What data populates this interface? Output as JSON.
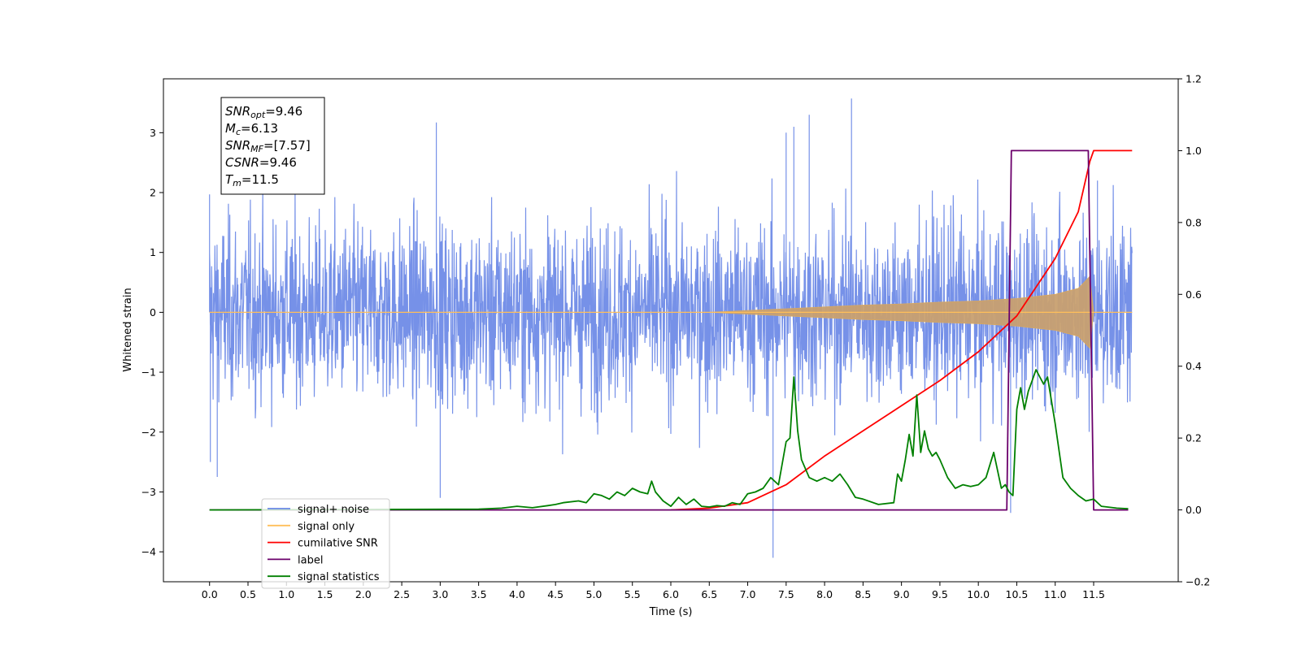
{
  "chart_data": {
    "type": "line",
    "title": "",
    "xlabel": "Time (s)",
    "ylabel": "Whitened strain",
    "xlim": [
      -0.6,
      12.6
    ],
    "ylim": [
      -4.5,
      3.9
    ],
    "y2lim": [
      -0.2,
      1.2
    ],
    "x_ticks": [
      0.0,
      0.5,
      1.0,
      1.5,
      2.0,
      2.5,
      3.0,
      3.5,
      4.0,
      4.5,
      5.0,
      5.5,
      6.0,
      6.5,
      7.0,
      7.5,
      8.0,
      8.5,
      9.0,
      9.5,
      10.0,
      10.5,
      11.0,
      11.5
    ],
    "x_tick_labels": [
      "0.0",
      "0.5",
      "1.0",
      "1.5",
      "2.0",
      "2.5",
      "3.0",
      "3.5",
      "4.0",
      "4.5",
      "5.0",
      "5.5",
      "6.0",
      "6.5",
      "7.0",
      "7.5",
      "8.0",
      "8.5",
      "9.0",
      "9.5",
      "10.0",
      "10.5",
      "11.0",
      "11.5"
    ],
    "y_ticks": [
      3,
      2,
      1,
      0,
      -1,
      -2,
      -3,
      -4
    ],
    "y_tick_labels": [
      "3",
      "2",
      "1",
      "0",
      "−1",
      "−2",
      "−3",
      "−4"
    ],
    "y2_ticks": [
      1.2,
      1.0,
      0.8,
      0.6,
      0.4,
      0.2,
      0.0,
      -0.2
    ],
    "y2_tick_labels": [
      "1.2",
      "1.0",
      "0.8",
      "0.6",
      "0.4",
      "0.2",
      "0.0",
      "−0.2"
    ],
    "grid": false,
    "legend_position": "lower-left",
    "legend": [
      {
        "name": "signal+ noise",
        "color": "#6a88e6"
      },
      {
        "name": "signal only",
        "color": "#ffbf5a"
      },
      {
        "name": "cumilative SNR",
        "color": "#ff0000"
      },
      {
        "name": "label",
        "color": "#6b006b"
      },
      {
        "name": "signal statistics",
        "color": "#008000"
      }
    ],
    "annotation": {
      "lines": [
        {
          "sym": "SNR",
          "sub": "opt",
          "value": "=9.46"
        },
        {
          "sym": "M",
          "sub": "c",
          "value": "=6.13"
        },
        {
          "sym": "SNR",
          "sub": "MF",
          "value": "=[7.57]"
        },
        {
          "sym": "CSNR",
          "sub": "",
          "value": "=9.46"
        },
        {
          "sym": "T",
          "sub": "m",
          "value": "=11.5"
        }
      ]
    },
    "noise_series": {
      "name": "signal+ noise",
      "axis": "left",
      "x_range": [
        0.0,
        12.0
      ],
      "typical_band": [
        -1.1,
        1.1
      ],
      "spike_points": [
        {
          "x": 0.0,
          "y": 1.97
        },
        {
          "x": 0.01,
          "y": -2.5
        },
        {
          "x": 0.1,
          "y": -2.75
        },
        {
          "x": 2.95,
          "y": 3.17
        },
        {
          "x": 3.0,
          "y": -3.1
        },
        {
          "x": 7.33,
          "y": -4.1
        },
        {
          "x": 7.5,
          "y": 3.0
        },
        {
          "x": 7.6,
          "y": 3.1
        },
        {
          "x": 7.8,
          "y": 3.3
        },
        {
          "x": 8.35,
          "y": 3.57
        },
        {
          "x": 10.42,
          "y": -3.35
        },
        {
          "x": 11.55,
          "y": 2.2
        }
      ]
    },
    "series": [
      {
        "name": "signal only",
        "axis": "left",
        "x": [
          0.0,
          6.5,
          7.0,
          7.5,
          8.0,
          8.5,
          9.0,
          9.5,
          10.0,
          10.5,
          11.0,
          11.3,
          11.45,
          11.5,
          12.0
        ],
        "amplitude": [
          0.0,
          0.0,
          0.03,
          0.06,
          0.09,
          0.12,
          0.14,
          0.17,
          0.19,
          0.23,
          0.3,
          0.4,
          0.6,
          0.0,
          0.0
        ]
      },
      {
        "name": "cumilative SNR",
        "axis": "right",
        "x": [
          6.0,
          6.5,
          7.0,
          7.5,
          8.0,
          8.5,
          9.0,
          9.5,
          10.0,
          10.5,
          11.0,
          11.3,
          11.45,
          11.5,
          12.0
        ],
        "y": [
          0.0,
          0.005,
          0.02,
          0.07,
          0.15,
          0.22,
          0.29,
          0.36,
          0.44,
          0.54,
          0.7,
          0.83,
          0.97,
          1.0,
          1.0
        ]
      },
      {
        "name": "label",
        "axis": "right",
        "x": [
          0.0,
          10.37,
          10.43,
          11.43,
          11.5,
          11.95
        ],
        "y": [
          0.0,
          0.0,
          1.0,
          1.0,
          0.0,
          0.0
        ]
      },
      {
        "name": "signal statistics",
        "axis": "right",
        "x": [
          0.0,
          3.5,
          3.8,
          4.0,
          4.2,
          4.4,
          4.5,
          4.6,
          4.8,
          4.9,
          5.0,
          5.1,
          5.2,
          5.3,
          5.4,
          5.5,
          5.6,
          5.7,
          5.75,
          5.8,
          5.9,
          6.0,
          6.1,
          6.2,
          6.3,
          6.4,
          6.5,
          6.6,
          6.7,
          6.8,
          6.9,
          7.0,
          7.1,
          7.2,
          7.3,
          7.4,
          7.5,
          7.55,
          7.6,
          7.65,
          7.7,
          7.8,
          7.9,
          8.0,
          8.1,
          8.2,
          8.3,
          8.4,
          8.5,
          8.7,
          8.9,
          8.95,
          9.0,
          9.05,
          9.1,
          9.15,
          9.2,
          9.25,
          9.3,
          9.35,
          9.4,
          9.45,
          9.5,
          9.6,
          9.7,
          9.8,
          9.9,
          10.0,
          10.1,
          10.2,
          10.3,
          10.35,
          10.4,
          10.45,
          10.5,
          10.55,
          10.6,
          10.65,
          10.7,
          10.75,
          10.8,
          10.85,
          10.9,
          11.0,
          11.1,
          11.2,
          11.3,
          11.4,
          11.5,
          11.6,
          11.8,
          11.95
        ],
        "y": [
          0.0,
          0.002,
          0.005,
          0.01,
          0.006,
          0.012,
          0.015,
          0.02,
          0.025,
          0.02,
          0.045,
          0.04,
          0.03,
          0.05,
          0.04,
          0.06,
          0.05,
          0.045,
          0.08,
          0.05,
          0.025,
          0.01,
          0.035,
          0.015,
          0.03,
          0.01,
          0.008,
          0.012,
          0.01,
          0.02,
          0.015,
          0.045,
          0.05,
          0.06,
          0.09,
          0.07,
          0.19,
          0.2,
          0.37,
          0.22,
          0.14,
          0.09,
          0.08,
          0.09,
          0.08,
          0.1,
          0.07,
          0.035,
          0.03,
          0.015,
          0.02,
          0.1,
          0.08,
          0.14,
          0.21,
          0.15,
          0.32,
          0.16,
          0.22,
          0.17,
          0.15,
          0.16,
          0.14,
          0.09,
          0.06,
          0.07,
          0.065,
          0.07,
          0.09,
          0.16,
          0.06,
          0.07,
          0.05,
          0.04,
          0.28,
          0.34,
          0.28,
          0.33,
          0.36,
          0.39,
          0.37,
          0.35,
          0.37,
          0.24,
          0.09,
          0.06,
          0.04,
          0.025,
          0.03,
          0.01,
          0.005,
          0.003
        ]
      }
    ]
  }
}
